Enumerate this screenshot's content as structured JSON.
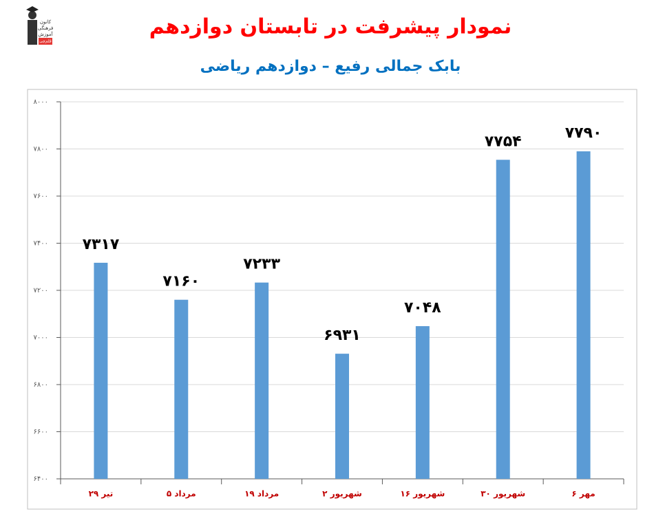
{
  "logo": {
    "lines": [
      "کانون",
      "فرهنگی",
      "آموزش",
      "قلم‌چی"
    ]
  },
  "chart_data": {
    "type": "bar",
    "title": "نمودار پیشرفت در تابستان دوازدهم",
    "subtitle": "بابک جمالی رفیع – دوازدهم ریاضی",
    "categories": [
      "۲۹ تیر",
      "۵ مرداد",
      "۱۹ مرداد",
      "۲ شهریور",
      "۱۶ شهریور",
      "۳۰ شهریور",
      "۶ مهر"
    ],
    "values": [
      7317,
      7160,
      7233,
      6931,
      7048,
      7754,
      7790
    ],
    "value_labels": [
      "۷۳۱۷",
      "۷۱۶۰",
      "۷۲۳۳",
      "۶۹۳۱",
      "۷۰۴۸",
      "۷۷۵۴",
      "۷۷۹۰"
    ],
    "color": "#5b9bd5",
    "ylim": [
      6400,
      8000
    ],
    "yticks": [
      {
        "value": 6400,
        "label": "۶۴۰۰"
      },
      {
        "value": 6600,
        "label": "۶۶۰۰"
      },
      {
        "value": 6800,
        "label": "۶۸۰۰"
      },
      {
        "value": 7000,
        "label": "۷۰۰۰"
      },
      {
        "value": 7200,
        "label": "۷۲۰۰"
      },
      {
        "value": 7400,
        "label": "۷۴۰۰"
      },
      {
        "value": 7600,
        "label": "۷۶۰۰"
      },
      {
        "value": 7800,
        "label": "۷۸۰۰"
      },
      {
        "value": 8000,
        "label": "۸۰۰۰"
      }
    ],
    "grid": true
  }
}
